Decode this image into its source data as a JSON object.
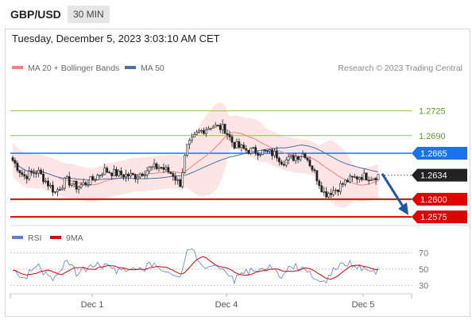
{
  "header": {
    "symbol": "GBP/USD",
    "timeframe": "30 MIN"
  },
  "datetime": "Tuesday, December 5, 2023 3:03:10 AM CET",
  "legend": {
    "ma20": {
      "label": "MA 20 + Bollinger Bands",
      "color": "#f08080"
    },
    "ma50": {
      "label": "MA 50",
      "color": "#4a6fa5"
    },
    "credit": "Research © 2023 Trading Central"
  },
  "rsi_legend": {
    "rsi": {
      "label": "RSI",
      "color": "#5b7fd6"
    },
    "ma": {
      "label": "9MA",
      "color": "#e00000"
    }
  },
  "colors": {
    "up_candle": "#ffffff",
    "down_candle": "#222222",
    "resistance_green": "#8cc63f",
    "pivot_blue": "#1a73e8",
    "support_red": "#e00000",
    "current_price": "#222222",
    "arrow": "#1f56a8",
    "band_fill": "#fde0e0"
  },
  "chart_data": [
    {
      "type": "line",
      "title": "",
      "xlabel": "",
      "ylabel": "",
      "ylim": [
        1.2565,
        1.2765
      ],
      "x_ticks": [
        "Dec 1",
        "Dec 4",
        "Dec 5"
      ],
      "levels": [
        {
          "value": 1.2725,
          "label": "1.2725",
          "kind": "resistance",
          "color": "#8cc63f"
        },
        {
          "value": 1.269,
          "label": "1.2690",
          "kind": "resistance",
          "color": "#8cc63f"
        },
        {
          "value": 1.2665,
          "label": "1.2665",
          "kind": "pivot",
          "color": "#1a73e8"
        },
        {
          "value": 1.2634,
          "label": "1.2634",
          "kind": "current",
          "color": "#222222"
        },
        {
          "value": 1.26,
          "label": "1.2600",
          "kind": "support",
          "color": "#e00000"
        },
        {
          "value": 1.2575,
          "label": "1.2575",
          "kind": "support",
          "color": "#e00000"
        }
      ],
      "forecast_arrow": {
        "from": 1.2636,
        "to": 1.2582,
        "direction": "down"
      },
      "grid": false,
      "legend_position": "top-left",
      "series": [
        {
          "name": "MA 20 + Bollinger Bands"
        },
        {
          "name": "MA 50"
        }
      ]
    },
    {
      "type": "line",
      "title": "",
      "xlabel": "",
      "ylabel": "",
      "ylim": [
        20,
        80
      ],
      "y_ticks": [
        70,
        50,
        30
      ],
      "x_ticks": [
        "Dec 1",
        "Dec 4",
        "Dec 5"
      ],
      "series": [
        {
          "name": "RSI"
        },
        {
          "name": "9MA"
        }
      ]
    }
  ]
}
